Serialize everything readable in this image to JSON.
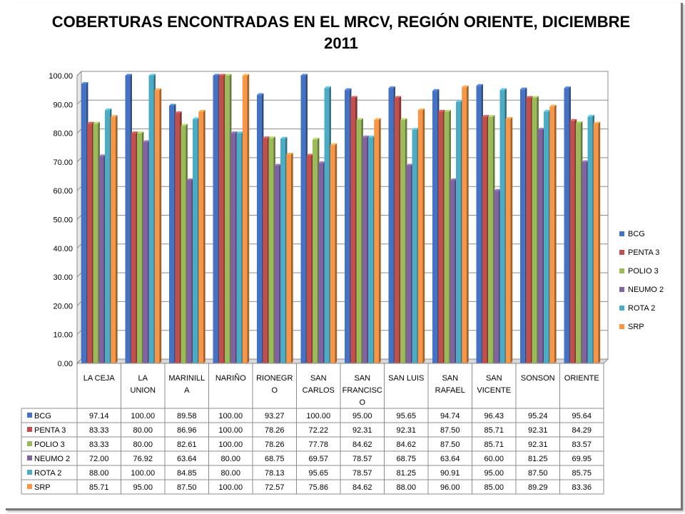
{
  "chart_data": {
    "type": "bar",
    "title_line1": "COBERTURAS ENCONTRADAS EN EL MRCV, REGIÓN ORIENTE, DICIEMBRE",
    "title_line2": "2011",
    "categories": [
      [
        "LA CEJA"
      ],
      [
        "LA",
        "UNION"
      ],
      [
        "MARINILL",
        "A"
      ],
      [
        "NARIÑO"
      ],
      [
        "RIONEGR",
        "O"
      ],
      [
        "SAN",
        "CARLOS"
      ],
      [
        "SAN",
        "FRANCISC",
        "O"
      ],
      [
        "SAN LUIS"
      ],
      [
        "SAN",
        "RAFAEL"
      ],
      [
        "SAN",
        "VICENTE"
      ],
      [
        "SONSON"
      ],
      [
        "ORIENTE"
      ]
    ],
    "ylim": [
      0,
      100
    ],
    "yticks": [
      "0.00",
      "10.00",
      "20.00",
      "30.00",
      "40.00",
      "50.00",
      "60.00",
      "70.00",
      "80.00",
      "90.00",
      "100.00"
    ],
    "grid": true,
    "legend_position": "right",
    "data_table": true,
    "series": [
      {
        "name": "BCG",
        "color": "#4472C4",
        "values": [
          97.14,
          100.0,
          89.58,
          100.0,
          93.27,
          100.0,
          95.0,
          95.65,
          94.74,
          96.43,
          95.24,
          95.64
        ]
      },
      {
        "name": "PENTA 3",
        "color": "#C0504D",
        "values": [
          83.33,
          80.0,
          86.96,
          100.0,
          78.26,
          72.22,
          92.31,
          92.31,
          87.5,
          85.71,
          92.31,
          84.29
        ]
      },
      {
        "name": "POLIO 3",
        "color": "#9BBB59",
        "values": [
          83.33,
          80.0,
          82.61,
          100.0,
          78.26,
          77.78,
          84.62,
          84.62,
          87.5,
          85.71,
          92.31,
          83.57
        ]
      },
      {
        "name": "NEUMO 2",
        "color": "#8064A2",
        "values": [
          72.0,
          76.92,
          63.64,
          80.0,
          68.75,
          69.57,
          78.57,
          68.75,
          63.64,
          60.0,
          81.25,
          69.95
        ]
      },
      {
        "name": "ROTA 2",
        "color": "#4BACC6",
        "values": [
          88.0,
          100.0,
          84.85,
          80.0,
          78.13,
          95.65,
          78.57,
          81.25,
          90.91,
          95.0,
          87.5,
          85.75
        ]
      },
      {
        "name": "SRP",
        "color": "#F79646",
        "values": [
          85.71,
          95.0,
          87.5,
          100.0,
          72.57,
          75.86,
          84.62,
          88.0,
          96.0,
          85.0,
          89.29,
          83.36
        ]
      }
    ]
  }
}
